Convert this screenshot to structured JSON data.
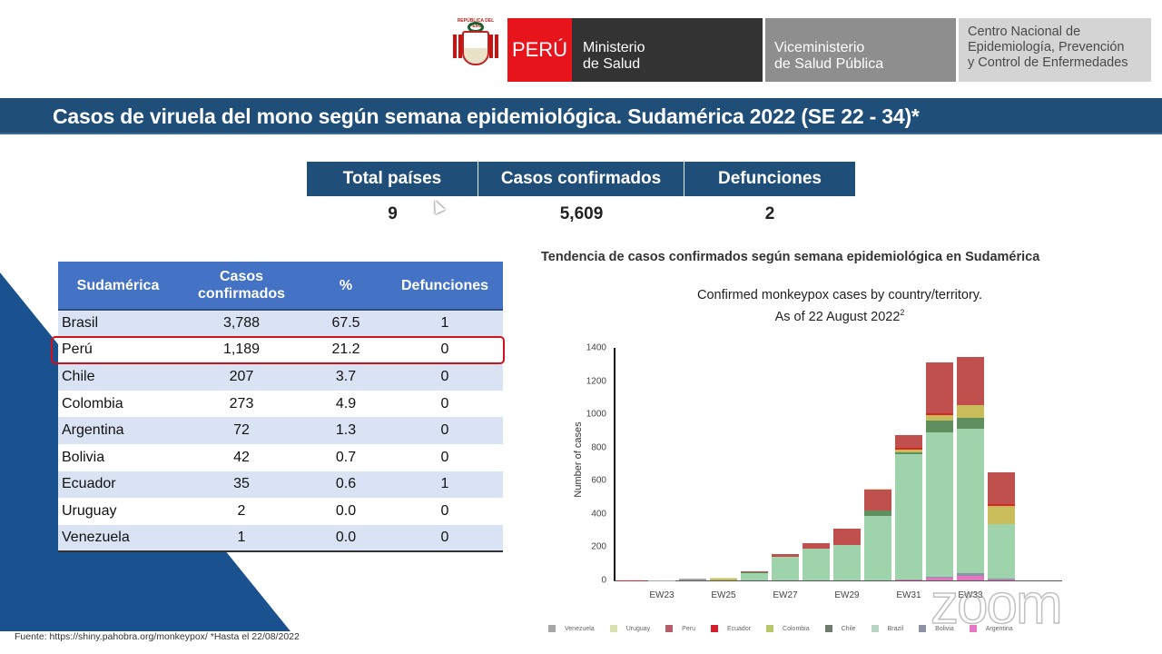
{
  "header": {
    "coat_text": "REPÚBLICA DEL PERÚ",
    "peru": "PERÚ",
    "ministerio_line1": "Ministerio",
    "ministerio_line2": "de Salud",
    "vice_line1": "Viceministerio",
    "vice_line2": "de Salud Pública",
    "cdc_line1": "Centro Nacional de",
    "cdc_line2": "Epidemiología, Prevención",
    "cdc_line3": "y Control de Enfermedades"
  },
  "title": "Casos de viruela del mono según semana epidemiológica. Sudamérica 2022 (SE 22 - 34)*",
  "summary": {
    "columns": [
      {
        "label": "Total países",
        "value": "9"
      },
      {
        "label": "Casos confirmados",
        "value": "5,609"
      },
      {
        "label": "Defunciones",
        "value": "2"
      }
    ]
  },
  "table": {
    "headers": [
      "Sudamérica",
      "Casos confirmados",
      "%",
      "Defunciones"
    ],
    "rows": [
      [
        "Brasil",
        "3,788",
        "67.5",
        "1"
      ],
      [
        "Perú",
        "1,189",
        "21.2",
        "0"
      ],
      [
        "Chile",
        "207",
        "3.7",
        "0"
      ],
      [
        "Colombia",
        "273",
        "4.9",
        "0"
      ],
      [
        "Argentina",
        "72",
        "1.3",
        "0"
      ],
      [
        "Bolivia",
        "42",
        "0.7",
        "0"
      ],
      [
        "Ecuador",
        "35",
        "0.6",
        "1"
      ],
      [
        "Uruguay",
        "2",
        "0.0",
        "0"
      ],
      [
        "Venezuela",
        "1",
        "0.0",
        "0"
      ]
    ],
    "highlighted_row": "Perú"
  },
  "chart_heading": "Tendencia de casos confirmados según semana epidemiológica en Sudamérica",
  "chart_data": {
    "type": "bar",
    "stacked": true,
    "title": "Confirmed monkeypox cases by country/territory.",
    "subtitle": "As of 22 August 2022",
    "subtitle_sup": "2",
    "xlabel": "",
    "ylabel": "Number of cases",
    "ylim": [
      0,
      1400
    ],
    "yticks": [
      0,
      200,
      400,
      600,
      800,
      1000,
      1200,
      1400
    ],
    "categories": [
      "EW22",
      "EW23",
      "EW24",
      "EW25",
      "EW26",
      "EW27",
      "EW28",
      "EW29",
      "EW30",
      "EW31",
      "EW32",
      "EW33",
      "EW34"
    ],
    "xtick_labels": [
      "EW23",
      "EW25",
      "EW27",
      "EW29",
      "EW31",
      "EW33"
    ],
    "series": [
      {
        "name": "Argentina",
        "color": "#e377c2",
        "values": [
          0,
          0,
          0,
          0,
          0,
          0,
          0,
          0,
          0,
          5,
          15,
          25,
          5
        ]
      },
      {
        "name": "Bolivia",
        "color": "#8c93a8",
        "values": [
          0,
          0,
          0,
          0,
          0,
          0,
          0,
          0,
          0,
          0,
          5,
          20,
          5
        ]
      },
      {
        "name": "Brasil",
        "color": "#9fd3ac",
        "values": [
          0,
          0,
          0,
          0,
          45,
          140,
          190,
          215,
          390,
          755,
          870,
          870,
          330
        ]
      },
      {
        "name": "Chile",
        "color": "#5f8f5f",
        "values": [
          0,
          0,
          0,
          0,
          5,
          5,
          0,
          0,
          30,
          10,
          70,
          65,
          0
        ]
      },
      {
        "name": "Colombia",
        "color": "#c9bc5a",
        "values": [
          0,
          0,
          0,
          12,
          0,
          0,
          0,
          0,
          0,
          20,
          35,
          75,
          110
        ]
      },
      {
        "name": "Ecuador",
        "color": "#d62728",
        "values": [
          2,
          0,
          0,
          0,
          0,
          0,
          0,
          0,
          0,
          8,
          10,
          3,
          12
        ]
      },
      {
        "name": "Peru",
        "color": "#c0504d",
        "values": [
          0,
          0,
          0,
          0,
          5,
          15,
          35,
          95,
          125,
          75,
          310,
          285,
          190
        ]
      },
      {
        "name": "Uruguay",
        "color": "#d9e2b0",
        "values": [
          0,
          0,
          0,
          5,
          0,
          0,
          0,
          0,
          5,
          0,
          0,
          0,
          0
        ]
      },
      {
        "name": "Venezuela",
        "color": "#a6a6a6",
        "values": [
          0,
          1,
          10,
          0,
          0,
          0,
          0,
          0,
          0,
          0,
          0,
          0,
          0
        ]
      }
    ],
    "legend": [
      "Venezuela",
      "Uruguay",
      "Peru",
      "Ecuador",
      "Colombia",
      "Chile",
      "Brazil",
      "Bolivia",
      "Argentina"
    ],
    "legend_colors": [
      "#a6a6a6",
      "#d9e2b0",
      "#b85c68",
      "#d81e2a",
      "#b9c96a",
      "#6e7a6e",
      "#b8d4c4",
      "#8c93a8",
      "#e377c2"
    ],
    "legend_position": "bottom",
    "grid": false
  },
  "watermark": "zoom",
  "source": "Fuente: https://shiny.pahobra.org/monkeypox/ *Hasta el 22/08/2022"
}
